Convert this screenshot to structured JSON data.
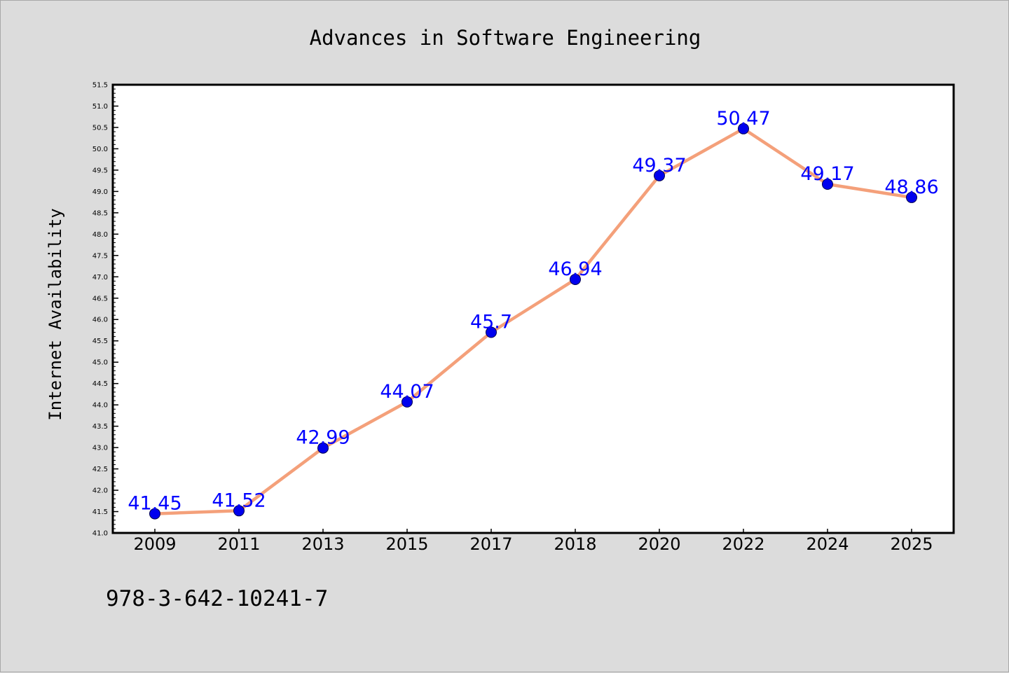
{
  "chart_data": {
    "type": "line",
    "title": "Advances in Software Engineering",
    "ylabel": "Internet Availability",
    "xlabel": "",
    "categories": [
      "2009",
      "2011",
      "2013",
      "2015",
      "2017",
      "2018",
      "2020",
      "2022",
      "2024",
      "2025"
    ],
    "series": [
      {
        "values": [
          41.45,
          41.52,
          42.99,
          44.07,
          45.7,
          46.94,
          49.37,
          50.47,
          49.17,
          48.86
        ],
        "labels": [
          "41.45",
          "41.52",
          "42.99",
          "44.07",
          "45.7",
          "46.94",
          "49.37",
          "50.47",
          "49.17",
          "48.86"
        ]
      }
    ],
    "ylim": [
      41.0,
      51.5
    ],
    "yticks": [
      "41.0",
      "41.5",
      "42.0",
      "42.5",
      "43.0",
      "43.5",
      "44.0",
      "44.5",
      "45.0",
      "45.5",
      "46.0",
      "46.5",
      "47.0",
      "47.5",
      "48.0",
      "48.5",
      "49.0",
      "49.5",
      "50.0",
      "50.5",
      "51.0",
      "51.5"
    ],
    "grid": false,
    "colors": {
      "line": "#f4a07a",
      "marker": "#0000ee",
      "data_label": "#0000ff",
      "background": "#dcdcdc",
      "plot_area": "#ffffff"
    }
  },
  "footer_text": "978-3-642-10241-7"
}
